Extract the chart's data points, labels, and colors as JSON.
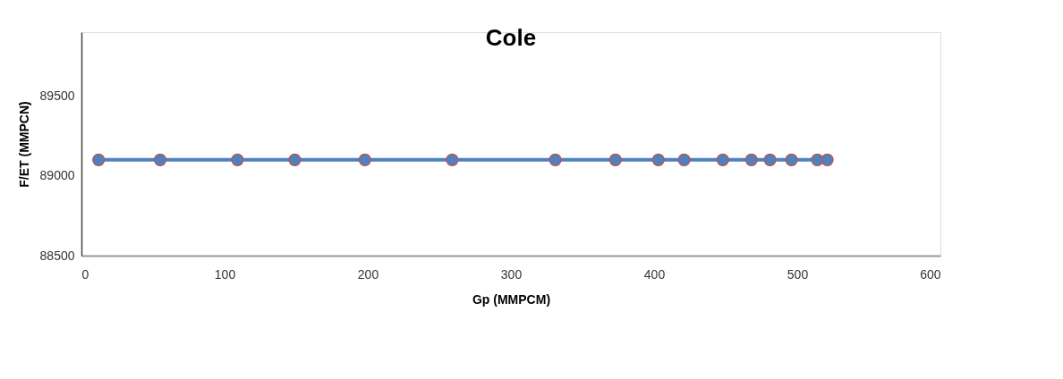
{
  "chart_data": {
    "type": "line",
    "title": "Cole",
    "xlabel": "Gp (MMPCM)",
    "ylabel": "F/ET (MMPCN)",
    "x": [
      12,
      55,
      109,
      149,
      198,
      259,
      331,
      373,
      403,
      421,
      448,
      468,
      481,
      496,
      514,
      521
    ],
    "series": [
      {
        "color": "#4f81bd",
        "values": [
          89100,
          89100,
          89100,
          89100,
          89100,
          89100,
          89100,
          89100,
          89100,
          89100,
          89100,
          89100,
          89100,
          89100,
          89100,
          89100
        ]
      }
    ],
    "xlim": [
      0,
      600
    ],
    "xticks": [
      0,
      100,
      200,
      300,
      400,
      500,
      600
    ],
    "ylim": [
      88500,
      89900
    ],
    "yticks": [
      88500,
      89000,
      89500
    ],
    "marker": "circle",
    "grid": false,
    "legend": false
  }
}
